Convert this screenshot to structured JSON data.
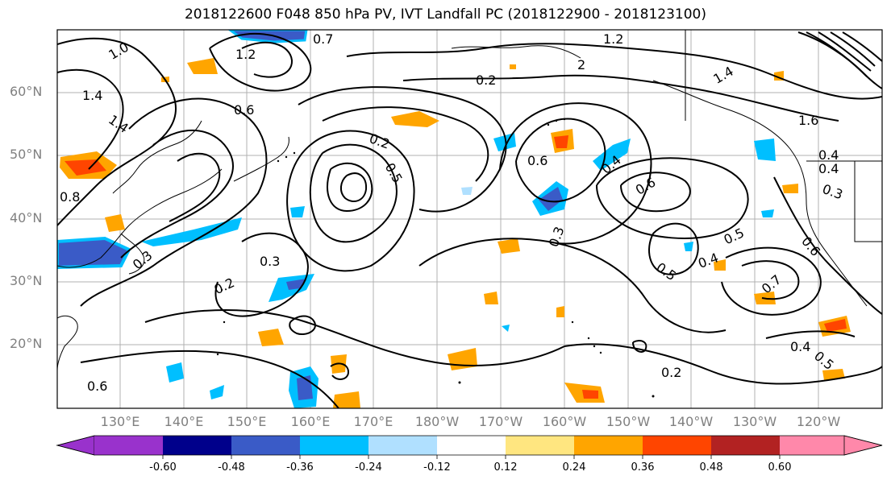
{
  "title": "2018122600 F048 850 hPa PV, IVT Landfall PC (2018122900 - 2018123100)",
  "latitude_labels": [
    "60°N",
    "50°N",
    "40°N",
    "30°N",
    "20°N"
  ],
  "longitude_labels": [
    "130°E",
    "140°E",
    "150°E",
    "160°E",
    "170°E",
    "180°W",
    "170°W",
    "160°W",
    "150°W",
    "140°W",
    "130°W",
    "120°W"
  ],
  "contour_labels": [
    "1.0",
    "0.7",
    "1.2",
    "1.2",
    "2",
    "1.4",
    "1.4",
    "0.6",
    "1.4",
    "1.6",
    "0.2",
    "0.6",
    "0.2",
    "0.5",
    "0.4",
    "0.6",
    "0.3",
    "0.4",
    "0.4",
    "0.3",
    "0.3",
    "0.2",
    "0.5",
    "0.5",
    "0.4",
    "0.7",
    "0.6",
    "0.4",
    "0.5",
    "0.2",
    "0.3",
    "0.8",
    "0.6"
  ],
  "colorbar": {
    "ticks": [
      "-0.60",
      "-0.48",
      "-0.36",
      "-0.24",
      "-0.12",
      "0.12",
      "0.24",
      "0.36",
      "0.48",
      "0.60"
    ],
    "colors": [
      "#9932cc",
      "#00008b",
      "#3a5bc7",
      "#00bfff",
      "#b0e0ff",
      "#ffffff",
      "#ffe680",
      "#ffa500",
      "#ff4500",
      "#b22222",
      "#ff88aa"
    ]
  }
}
